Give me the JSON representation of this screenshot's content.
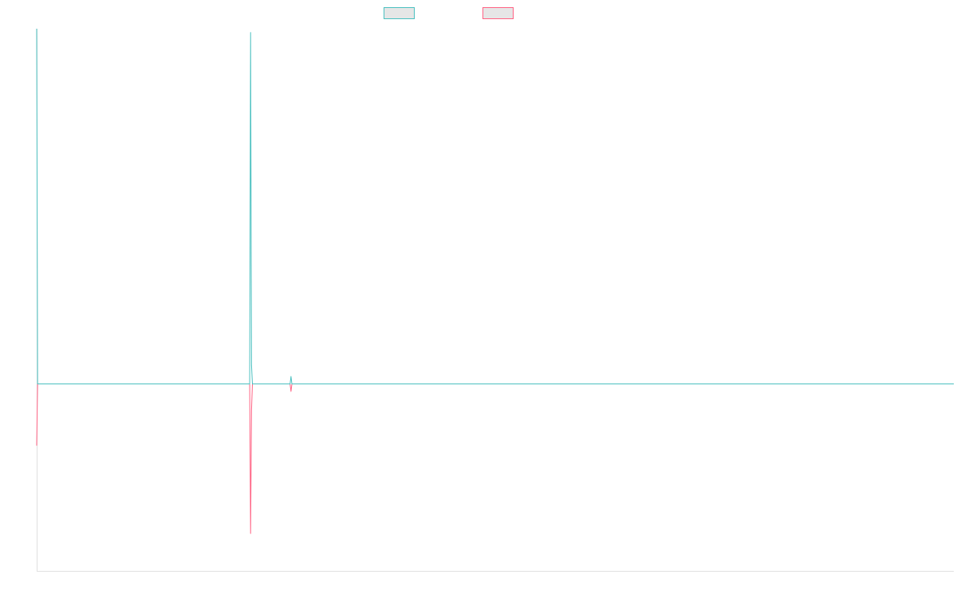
{
  "colors": {
    "series_a": "#4bc0c0",
    "series_b": "#ff6384",
    "axis": "#e0e0e0",
    "swatch_fill": "#e6e6e6"
  },
  "chart_data": {
    "type": "line",
    "title": "",
    "xlabel": "",
    "ylabel": "",
    "x_count": 1000,
    "x_range": [
      0,
      999
    ],
    "ylim": [
      -100,
      190
    ],
    "grid": false,
    "legend": "top",
    "x_tick_labels": [],
    "y_tick_labels": [],
    "series": [
      {
        "name": "",
        "color": "#4bc0c0",
        "baseline": 0,
        "spikes": [
          {
            "x": 0,
            "y": 190
          },
          {
            "x": 1,
            "y": 0
          },
          {
            "x": 232,
            "y": 0
          },
          {
            "x": 233,
            "y": 188
          },
          {
            "x": 234,
            "y": 10
          },
          {
            "x": 235,
            "y": 0
          },
          {
            "x": 276,
            "y": 0
          },
          {
            "x": 277,
            "y": 4
          },
          {
            "x": 278,
            "y": 0
          }
        ]
      },
      {
        "name": "",
        "color": "#ff6384",
        "baseline": 0,
        "spikes": [
          {
            "x": 0,
            "y": -33
          },
          {
            "x": 1,
            "y": 0
          },
          {
            "x": 232,
            "y": 0
          },
          {
            "x": 233,
            "y": -80
          },
          {
            "x": 234,
            "y": -14
          },
          {
            "x": 235,
            "y": 0
          },
          {
            "x": 276,
            "y": 0
          },
          {
            "x": 277,
            "y": -4
          },
          {
            "x": 278,
            "y": 0
          }
        ]
      }
    ]
  }
}
